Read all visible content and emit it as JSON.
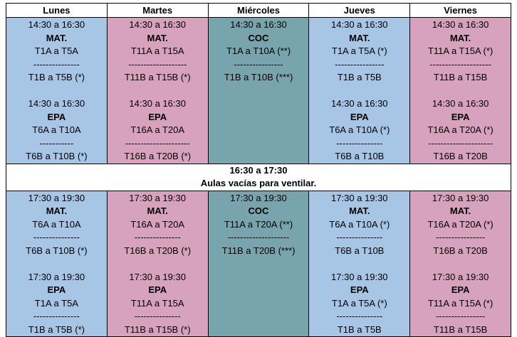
{
  "days": [
    {
      "key": "lunes",
      "label": "Lunes"
    },
    {
      "key": "martes",
      "label": "Martes"
    },
    {
      "key": "miercoles",
      "label": "Miércoles"
    },
    {
      "key": "jueves",
      "label": "Jueves"
    },
    {
      "key": "viernes",
      "label": "Viernes"
    }
  ],
  "afternoon": {
    "lunes": [
      {
        "time": "14:30 a 16:30",
        "subject": "MAT.",
        "groupA": "T1A a T5A",
        "sep": "---------------",
        "groupB": "T1B a T5B (*)"
      },
      {
        "time": "14:30 a 16:30",
        "subject": "EPA",
        "groupA": "T6A a T10A",
        "sep": "-----------",
        "groupB": "T6B a T10B (*)"
      }
    ],
    "martes": [
      {
        "time": "14:30 a 16:30",
        "subject": "MAT.",
        "groupA": "T11A a T15A",
        "sep": "-------------------",
        "groupB": "T11B a T15B (*)"
      },
      {
        "time": "14:30 a 16:30",
        "subject": "EPA",
        "groupA": "T16A a T20A",
        "sep": "---------------------",
        "groupB": "T16B a T20B (*)"
      }
    ],
    "miercoles": [
      {
        "time": "14:30 a 16:30",
        "subject": "COC",
        "groupA": "T1A a T10A (**)",
        "sep": "----------------",
        "groupB": "T1B a T10B (***)"
      }
    ],
    "jueves": [
      {
        "time": "14:30 a 16:30",
        "subject": "MAT.",
        "groupA": "T1A a T5A (*)",
        "sep": "----------------",
        "groupB": "T1B a T5B"
      },
      {
        "time": "14:30 a 16:30",
        "subject": "EPA",
        "groupA": "T6A a T10A (*)",
        "sep": "---------------",
        "groupB": "T6B a T10B"
      }
    ],
    "viernes": [
      {
        "time": "14:30 a 16:30",
        "subject": "MAT.",
        "groupA": "T11A a T15A (*)",
        "sep": "--------------------",
        "groupB": "T11B a T15B"
      },
      {
        "time": "14:30 a 16:30",
        "subject": "EPA",
        "groupA": "T16A a T20A (*)",
        "sep": "---------------------",
        "groupB": "T16B a T20B"
      }
    ]
  },
  "break": {
    "time": "16:30 a 17:30",
    "note": "Aulas vacías para ventilar."
  },
  "evening": {
    "lunes": [
      {
        "time": "17:30 a 19:30",
        "subject": "MAT.",
        "groupA": "T6A a T10A",
        "sep": "---------------",
        "groupB": "T6B a T10B (*)"
      },
      {
        "time": "17:30 a 19:30",
        "subject": "EPA",
        "groupA": "T1A a T5A",
        "sep": "---------------",
        "groupB": "T1B a T5B (*)"
      }
    ],
    "martes": [
      {
        "time": "17:30 a 19:30",
        "subject": "MAT.",
        "groupA": "T16A a T20A",
        "sep": "---------------",
        "groupB": "T16B a T20B (*)"
      },
      {
        "time": "17:30 a 19:30",
        "subject": "EPA",
        "groupA": "T11A a T15A",
        "sep": "---------------",
        "groupB": "T11B a T15B (*)"
      }
    ],
    "miercoles": [
      {
        "time": "17:30 a 19:30",
        "subject": "COC",
        "groupA": "T11A a T20A (**)",
        "sep": "--------------------",
        "groupB": "T11B a T20B (***)"
      }
    ],
    "jueves": [
      {
        "time": "17:30 a 19:30",
        "subject": "MAT.",
        "groupA": "T6A a T10A (*)",
        "sep": "---------------",
        "groupB": "T6B a T10B"
      },
      {
        "time": "17:30 a 19:30",
        "subject": "EPA",
        "groupA": "T1A a T5A (*)",
        "sep": "---------------",
        "groupB": "T1B a T5B"
      }
    ],
    "viernes": [
      {
        "time": "17:30 a 19:30",
        "subject": "MAT.",
        "groupA": "T16A a T20A (*)",
        "sep": "----------------",
        "groupB": "T16B a T20B"
      },
      {
        "time": "17:30 a 19:30",
        "subject": "EPA",
        "groupA": "T11A a T15A (*)",
        "sep": "----------------",
        "groupB": "T11B a T15B"
      }
    ]
  },
  "colors": {
    "lunes": "#a7c6e6",
    "martes": "#d7a2bd",
    "miercoles": "#77a4ad",
    "jueves": "#a7c6e6",
    "viernes": "#d7a2bd"
  }
}
